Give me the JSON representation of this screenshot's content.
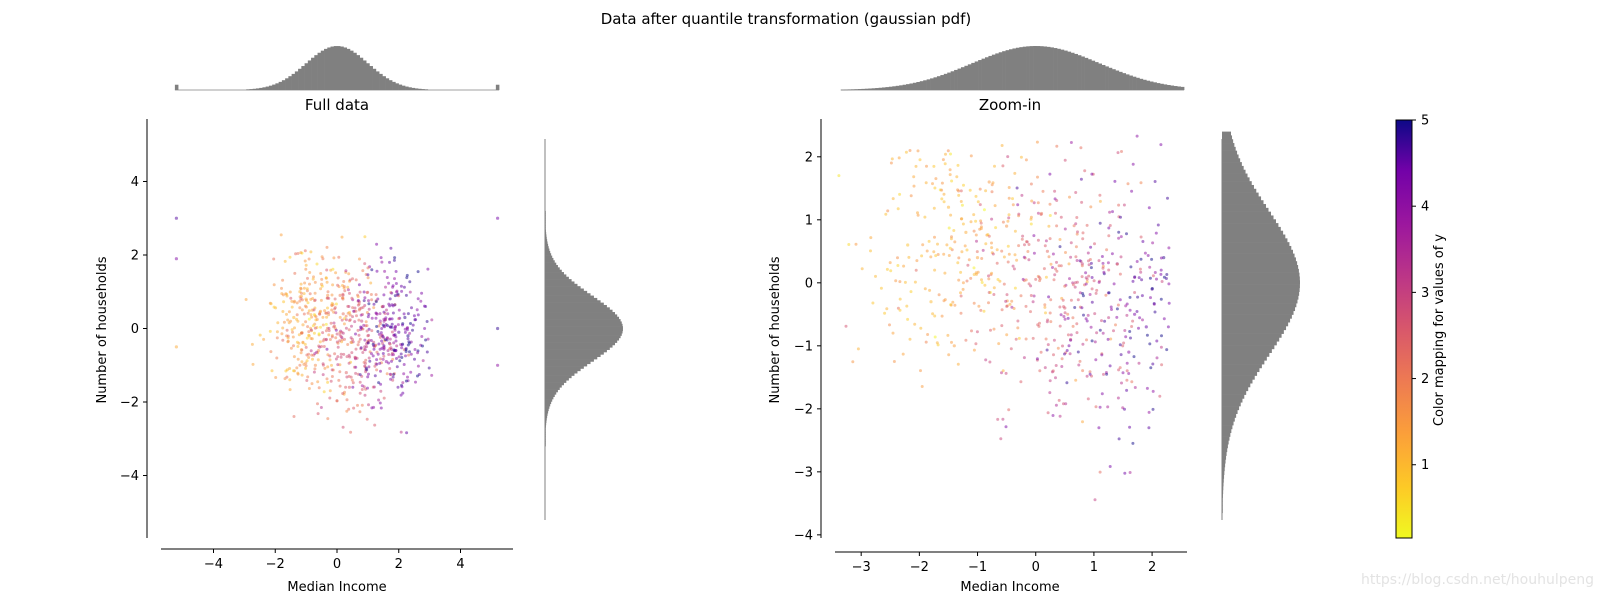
{
  "figure": {
    "suptitle": "Data after quantile transformation (gaussian pdf)",
    "watermark": "https://blog.csdn.net/houhulpeng"
  },
  "chart_data": [
    {
      "type": "scatter",
      "title": "Full data",
      "xlabel": "Median Income",
      "ylabel": "Number of households",
      "xlim": [
        -5.7,
        5.7
      ],
      "ylim": [
        -5.7,
        5.7
      ],
      "xticks": [
        -4,
        -2,
        0,
        2,
        4
      ],
      "yticks": [
        -4,
        -2,
        0,
        2,
        4
      ],
      "xtick_labels": [
        "−4",
        "−2",
        "0",
        "2",
        "4"
      ],
      "ytick_labels": [
        "−4",
        "−2",
        "0",
        "2",
        "4"
      ],
      "grid": false,
      "marginal_histograms": [
        "top",
        "right"
      ],
      "hist_color": "#808080",
      "point_alpha": 0.5,
      "series": [
        {
          "x": [
            -1.2,
            -1.0,
            -0.8,
            -0.5,
            -0.9,
            -1.4,
            -0.6,
            -1.1,
            -0.3,
            -0.7
          ],
          "y": [
            1.0,
            0.8,
            0.5,
            1.2,
            -0.2,
            0.3,
            -0.6,
            0.1,
            0.9,
            -1.0
          ],
          "c": [
            1.1,
            1.2,
            1.3,
            1.5,
            1.4,
            1.0,
            1.8,
            1.2,
            1.6,
            1.7
          ]
        },
        {
          "x": [
            0.2,
            0.5,
            0.8,
            0.3,
            0.6,
            0.1,
            0.9,
            0.4
          ],
          "y": [
            0.4,
            -0.3,
            0.2,
            -1.2,
            -0.8,
            0.9,
            -0.5,
            -1.6
          ],
          "c": [
            2.2,
            2.6,
            3.0,
            2.4,
            2.8,
            2.0,
            3.2,
            2.5
          ]
        },
        {
          "x": [
            1.4,
            1.7,
            2.0,
            1.6,
            2.2,
            1.9,
            1.5,
            2.3
          ],
          "y": [
            0.2,
            -0.4,
            -0.1,
            -0.9,
            0.3,
            -0.6,
            0.6,
            -0.2
          ],
          "c": [
            3.8,
            4.2,
            4.6,
            4.0,
            4.8,
            4.5,
            3.6,
            4.9
          ]
        },
        {
          "x": [
            -5.2,
            -5.2,
            -5.2,
            5.2,
            5.2,
            5.2
          ],
          "y": [
            3.0,
            1.9,
            -0.5,
            3.0,
            0.0,
            -1.0
          ],
          "c": [
            4.6,
            4.2,
            1.2,
            4.4,
            4.8,
            4.0
          ]
        }
      ]
    },
    {
      "type": "scatter",
      "title": "Zoom-in",
      "xlabel": "Median Income",
      "ylabel": "Number of households",
      "xlim": [
        -3.45,
        2.6
      ],
      "ylim": [
        -4.05,
        2.6
      ],
      "xticks": [
        -3,
        -2,
        -1,
        0,
        1,
        2
      ],
      "yticks": [
        -4,
        -3,
        -2,
        -1,
        0,
        1,
        2
      ],
      "xtick_labels": [
        "−3",
        "−2",
        "−1",
        "0",
        "1",
        "2"
      ],
      "ytick_labels": [
        "−4",
        "−3",
        "−2",
        "−1",
        "0",
        "1",
        "2"
      ],
      "grid": false,
      "marginal_histograms": [
        "top",
        "right"
      ],
      "hist_color": "#808080",
      "point_alpha": 0.5,
      "series": [
        {
          "x": [
            -1.5,
            -1.2,
            -1.0,
            -0.8,
            -0.5,
            -1.8,
            -2.2,
            -1.4
          ],
          "y": [
            1.2,
            0.8,
            0.4,
            1.6,
            0.9,
            -0.3,
            0.6,
            -1.0
          ],
          "c": [
            1.1,
            1.2,
            1.3,
            1.5,
            1.6,
            1.0,
            0.9,
            1.4
          ]
        },
        {
          "x": [
            0.2,
            0.5,
            0.8,
            0.3,
            0.6,
            0.1
          ],
          "y": [
            0.5,
            -0.4,
            0.3,
            -1.4,
            -0.9,
            1.1
          ],
          "c": [
            2.3,
            2.6,
            3.0,
            2.5,
            2.8,
            2.1
          ]
        },
        {
          "x": [
            1.4,
            1.7,
            2.0,
            1.6,
            2.2,
            1.9
          ],
          "y": [
            0.3,
            -0.5,
            -0.1,
            -1.1,
            0.4,
            -0.7
          ],
          "c": [
            3.9,
            4.3,
            4.6,
            4.1,
            4.8,
            4.5
          ]
        }
      ]
    }
  ],
  "colorbar": {
    "label": "Color mapping for values of y",
    "ticks": [
      1,
      2,
      3,
      4,
      5
    ],
    "tick_labels": [
      "1",
      "2",
      "3",
      "4",
      "5"
    ],
    "range": [
      0.15,
      5.0
    ],
    "colormap": "plasma_r"
  }
}
